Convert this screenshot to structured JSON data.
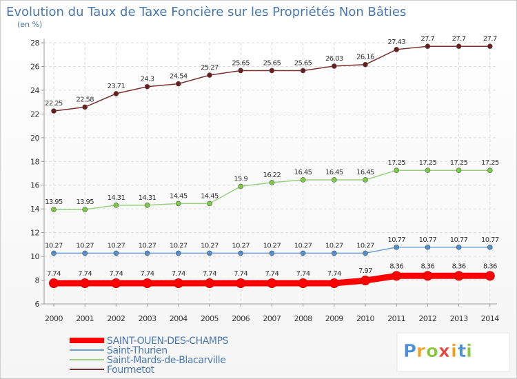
{
  "chart_data": {
    "type": "line",
    "title": "Evolution du Taux de Taxe Foncière sur les Propriétés Non Bâties",
    "ylabel": "(en %)",
    "xlabel": "",
    "x": [
      "2000",
      "2001",
      "2002",
      "2003",
      "2004",
      "2005",
      "2006",
      "2007",
      "2008",
      "2009",
      "2010",
      "2011",
      "2012",
      "2013",
      "2014"
    ],
    "ylim": [
      6,
      28
    ],
    "yticks": [
      6,
      8,
      10,
      12,
      14,
      16,
      18,
      20,
      22,
      24,
      26,
      28
    ],
    "grid": "horizontal",
    "legend": "bottom-left",
    "series": [
      {
        "name": "SAINT-OUEN-DES-CHAMPS",
        "color": "#ff0000",
        "emphasis": true,
        "values": [
          7.74,
          7.74,
          7.74,
          7.74,
          7.74,
          7.74,
          7.74,
          7.74,
          7.74,
          7.74,
          7.97,
          8.36,
          8.36,
          8.36,
          8.36
        ],
        "labels": [
          "7.74",
          "7.74",
          "7.74",
          "7.74",
          "7.74",
          "7.74",
          "7.74",
          "7.74",
          "7.74",
          "7.74",
          "7.97",
          "8.36",
          "8.36",
          "8.36",
          "8.36"
        ]
      },
      {
        "name": "Saint-Thurien",
        "color": "#6fa0cc",
        "marker": "#4f90d0",
        "values": [
          10.27,
          10.27,
          10.27,
          10.27,
          10.27,
          10.27,
          10.27,
          10.27,
          10.27,
          10.27,
          10.27,
          10.77,
          10.77,
          10.77,
          10.77
        ],
        "labels": [
          "10.27",
          "10.27",
          "10.27",
          "10.27",
          "10.27",
          "10.27",
          "10.27",
          "10.27",
          "10.27",
          "10.27",
          "10.27",
          "10.77",
          "10.77",
          "10.77",
          "10.77"
        ]
      },
      {
        "name": "Saint-Mards-de-Blacarville",
        "color": "#99d080",
        "marker": "#7ccc44",
        "values": [
          13.95,
          13.95,
          14.31,
          14.31,
          14.45,
          14.45,
          15.9,
          16.22,
          16.45,
          16.45,
          16.45,
          17.25,
          17.25,
          17.25,
          17.25
        ],
        "labels": [
          "13.95",
          "13.95",
          "14.31",
          "14.31",
          "14.45",
          "14.45",
          "15.9",
          "16.22",
          "16.45",
          "16.45",
          "16.45",
          "17.25",
          "17.25",
          "17.25",
          "17.25"
        ]
      },
      {
        "name": "Fourmetot",
        "color": "#7a3030",
        "marker": "#6a1e1e",
        "values": [
          22.25,
          22.58,
          23.71,
          24.3,
          24.54,
          25.27,
          25.65,
          25.65,
          25.65,
          26.03,
          26.16,
          27.43,
          27.7,
          27.7,
          27.7
        ],
        "labels": [
          "22.25",
          "22.58",
          "23.71",
          "24.3",
          "24.54",
          "25.27",
          "25.65",
          "25.65",
          "25.65",
          "26.03",
          "26.16",
          "27.43",
          "27.7",
          "27.7",
          "27.7"
        ]
      }
    ]
  },
  "brand": {
    "letters": [
      "P",
      "r",
      "o",
      "x",
      "i",
      "t",
      "i"
    ],
    "colors": [
      "#4a8fd8",
      "#f0a020",
      "#8cc63f",
      "#e8433a",
      "#f0a020",
      "#4a8fd8",
      "#8cc63f"
    ]
  }
}
